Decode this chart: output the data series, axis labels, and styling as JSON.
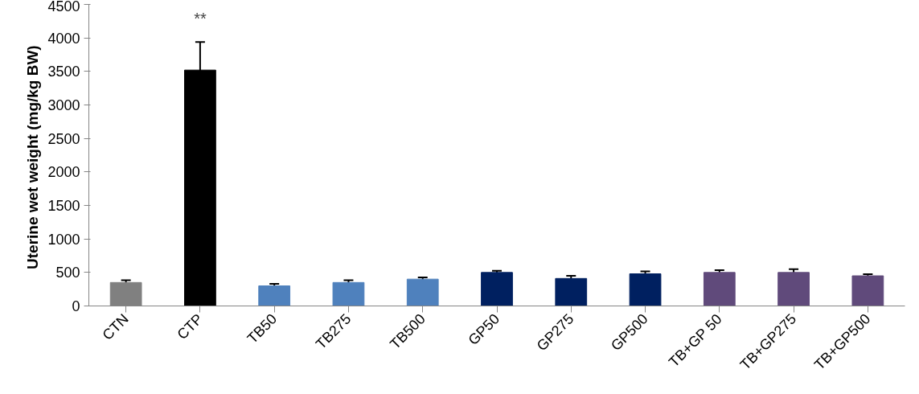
{
  "chart_data": {
    "type": "bar",
    "ylabel": "Uterine wet weight  (mg/kg BW)",
    "categories": [
      "CTN",
      "CTP",
      "TB50",
      "TB275",
      "TB500",
      "GP50",
      "GP275",
      "GP500",
      "TB+GP 50",
      "TB+GP275",
      "TB+GP500"
    ],
    "values": [
      350,
      3520,
      300,
      350,
      400,
      500,
      410,
      480,
      500,
      500,
      450
    ],
    "errors": [
      35,
      420,
      30,
      35,
      25,
      25,
      40,
      35,
      35,
      50,
      25
    ],
    "colors": [
      "#808080",
      "#000000",
      "#4f81bd",
      "#4f81bd",
      "#4f81bd",
      "#002060",
      "#002060",
      "#002060",
      "#604a7b",
      "#604a7b",
      "#604a7b"
    ],
    "ylim": [
      0,
      4500
    ],
    "yticks": [
      0,
      500,
      1000,
      1500,
      2000,
      2500,
      3000,
      3500,
      4000,
      4500
    ],
    "grid": false,
    "annotations": [
      "**"
    ]
  }
}
